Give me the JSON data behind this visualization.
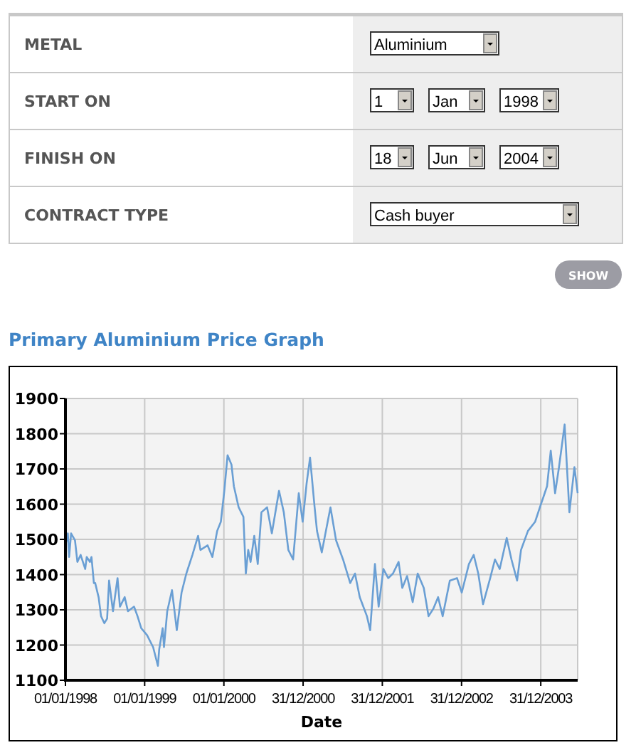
{
  "chart_data": {
    "type": "line",
    "title": "Primary Aluminium Price Graph",
    "xlabel": "Date",
    "annotations": [
      "METAL",
      "Aluminium",
      "START ON",
      "1",
      "Jan",
      "1998",
      "FINISH ON",
      "18",
      "Jun",
      "2004",
      "CONTRACT TYPE",
      "Cash buyer",
      "SHOW"
    ],
    "xlim": [
      "1998-01-01",
      "2004-06-18"
    ],
    "xticks": [
      {
        "value": "1998-01-01",
        "label": "01/01/1998"
      },
      {
        "value": "1999-01-01",
        "label": "01/01/1999"
      },
      {
        "value": "2000-01-01",
        "label": "01/01/2000"
      },
      {
        "value": "2000-12-31",
        "label": "31/12/2000"
      },
      {
        "value": "2001-12-31",
        "label": "31/12/2001"
      },
      {
        "value": "2002-12-31",
        "label": "31/12/2002"
      },
      {
        "value": "2003-12-31",
        "label": "31/12/2003"
      }
    ],
    "ylim": [
      1100,
      1900
    ],
    "yticks": [
      1100,
      1200,
      1300,
      1400,
      1500,
      1600,
      1700,
      1800,
      1900
    ],
    "grid": true,
    "line_style": "solid",
    "series": [
      {
        "color": "#6a9fd4",
        "x": [
          "1998-01-01",
          "1998-01-12",
          "1998-01-18",
          "1998-01-27",
          "1998-02-14",
          "1998-02-25",
          "1998-03-12",
          "1998-04-02",
          "1998-04-09",
          "1998-04-24",
          "1998-05-01",
          "1998-05-12",
          "1998-05-18",
          "1998-06-03",
          "1998-06-14",
          "1998-06-29",
          "1998-07-12",
          "1998-07-21",
          "1998-08-08",
          "1998-08-29",
          "1998-09-09",
          "1998-10-01",
          "1998-10-16",
          "1998-11-13",
          "1998-11-29",
          "1998-12-16",
          "1999-01-12",
          "1999-02-09",
          "1999-03-03",
          "1999-03-09",
          "1999-03-25",
          "1999-03-31",
          "1999-04-15",
          "1999-05-07",
          "1999-05-29",
          "1999-06-20",
          "1999-07-12",
          "1999-08-09",
          "1999-09-04",
          "1999-09-15",
          "1999-10-18",
          "1999-11-09",
          "1999-12-01",
          "1999-12-18",
          "2000-01-03",
          "2000-01-18",
          "2000-02-05",
          "2000-02-16",
          "2000-03-09",
          "2000-03-31",
          "2000-04-11",
          "2000-04-22",
          "2000-05-03",
          "2000-05-20",
          "2000-06-05",
          "2000-06-22",
          "2000-07-18",
          "2000-08-09",
          "2000-09-11",
          "2000-10-03",
          "2000-10-24",
          "2000-11-15",
          "2000-12-11",
          "2000-12-29",
          "2001-01-16",
          "2001-02-01",
          "2001-02-22",
          "2001-03-05",
          "2001-03-27",
          "2001-05-06",
          "2001-06-01",
          "2001-07-03",
          "2001-08-05",
          "2001-08-27",
          "2001-09-18",
          "2001-10-21",
          "2001-11-05",
          "2001-11-27",
          "2001-12-14",
          "2002-01-05",
          "2002-01-27",
          "2002-02-18",
          "2002-03-16",
          "2002-04-02",
          "2002-04-24",
          "2002-05-20",
          "2002-06-12",
          "2002-07-10",
          "2002-08-01",
          "2002-08-23",
          "2002-09-14",
          "2002-10-05",
          "2002-11-07",
          "2002-12-10",
          "2003-01-01",
          "2003-02-03",
          "2003-02-25",
          "2003-03-18",
          "2003-04-09",
          "2003-05-12",
          "2003-06-03",
          "2003-06-25",
          "2003-07-27",
          "2003-08-18",
          "2003-09-13",
          "2003-10-01",
          "2003-11-02",
          "2003-12-05",
          "2003-12-27",
          "2004-01-29",
          "2004-02-15",
          "2004-03-06",
          "2004-03-24",
          "2004-04-19",
          "2004-05-11",
          "2004-06-03",
          "2004-06-18"
        ],
        "values": [
          1483,
          1517,
          1450,
          1517,
          1497,
          1436,
          1456,
          1416,
          1450,
          1436,
          1450,
          1376,
          1376,
          1335,
          1282,
          1262,
          1275,
          1383,
          1296,
          1390,
          1309,
          1336,
          1296,
          1309,
          1282,
          1248,
          1228,
          1194,
          1141,
          1188,
          1248,
          1194,
          1296,
          1356,
          1242,
          1349,
          1403,
          1456,
          1510,
          1470,
          1483,
          1450,
          1524,
          1550,
          1638,
          1739,
          1712,
          1651,
          1591,
          1564,
          1403,
          1470,
          1436,
          1510,
          1430,
          1577,
          1591,
          1517,
          1638,
          1577,
          1470,
          1443,
          1631,
          1550,
          1658,
          1732,
          1591,
          1524,
          1463,
          1591,
          1497,
          1443,
          1376,
          1403,
          1336,
          1282,
          1242,
          1430,
          1309,
          1416,
          1390,
          1403,
          1436,
          1362,
          1396,
          1322,
          1403,
          1362,
          1282,
          1303,
          1336,
          1282,
          1383,
          1390,
          1349,
          1430,
          1456,
          1403,
          1316,
          1390,
          1443,
          1416,
          1504,
          1443,
          1383,
          1470,
          1524,
          1550,
          1591,
          1651,
          1752,
          1631,
          1705,
          1826,
          1577,
          1705,
          1631
        ]
      }
    ]
  }
}
